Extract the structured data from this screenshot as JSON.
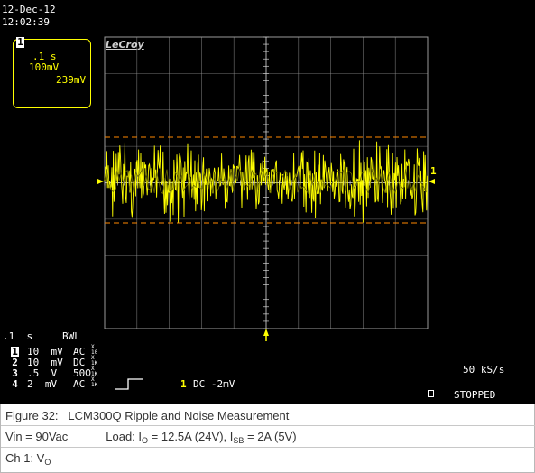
{
  "scope": {
    "date": "12-Dec-12",
    "time": "12:02:39",
    "brand": "LeCroy",
    "trigger_box": {
      "channel": "1",
      "timebase": ".1 s",
      "volts": "100mV",
      "level": "239mV"
    },
    "status_left": {
      "timebase": ".1  s",
      "bwl": "BWL"
    },
    "channels": [
      {
        "num": "1",
        "volts": "10  mV",
        "coupling": "AC",
        "probe": "X\n10"
      },
      {
        "num": "2",
        "volts": "10  mV",
        "coupling": "DC",
        "probe": "X\n1K"
      },
      {
        "num": "3",
        "volts": ".5  V",
        "coupling": "50Ω",
        "probe": "X\n1K"
      },
      {
        "num": "4",
        "volts": "2  mV",
        "coupling": "AC",
        "probe": "X\n1K"
      }
    ],
    "trigger_info": {
      "channel": "1",
      "text": "DC -2mV"
    },
    "sample_rate": "50 kS/s",
    "acq_status": "STOPPED",
    "trace_label": "1",
    "colors": {
      "background": "#000000",
      "trace": "#ffff00",
      "grid": "#9a9a9a",
      "cursor": "#ff8800",
      "text": "#ffffff"
    }
  },
  "caption": {
    "figure": "Figure 32:",
    "title": "LCM300Q Ripple and Noise Measurement",
    "vin": "Vin = 90Vac",
    "load_prefix": "Load: I",
    "load_sub1": "O",
    "load_mid": " = 12.5A (24V), I",
    "load_sub2": "SB",
    "load_suffix": " = 2A (5V)",
    "ch_prefix": "Ch 1: V",
    "ch_sub": "O"
  }
}
